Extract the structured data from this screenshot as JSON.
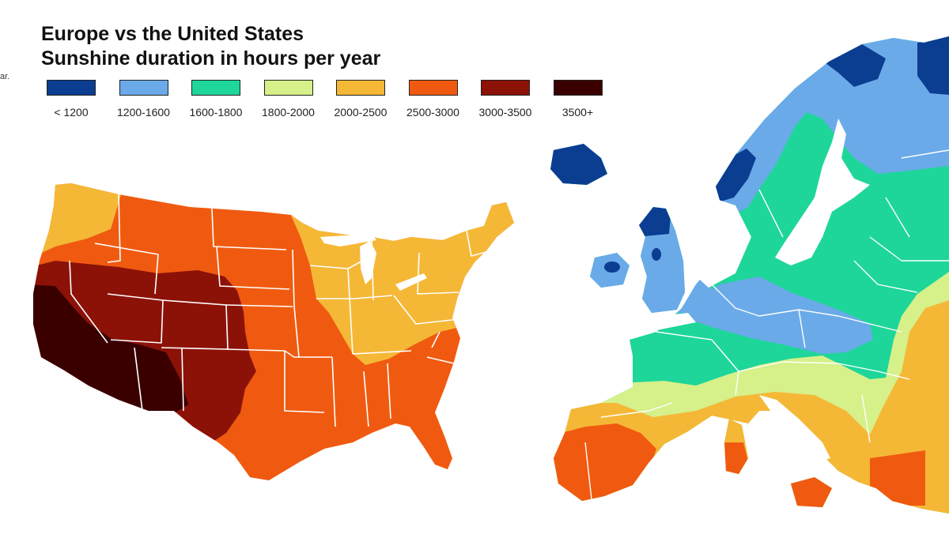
{
  "title_lines": [
    "Europe vs the United States",
    "Sunshine duration in hours per year"
  ],
  "edge_fragment": "ar.",
  "legend": [
    {
      "label": "< 1200",
      "color": "#0b3d91"
    },
    {
      "label": "1200-1600",
      "color": "#6aaae8"
    },
    {
      "label": "1600-1800",
      "color": "#1ed69a"
    },
    {
      "label": "1800-2000",
      "color": "#d6f08a"
    },
    {
      "label": "2000-2500",
      "color": "#f5b836"
    },
    {
      "label": "2500-3000",
      "color": "#f05a10"
    },
    {
      "label": "3000-3500",
      "color": "#8c1208"
    },
    {
      "label": "3500+",
      "color": "#3a0000"
    }
  ],
  "maps": {
    "usa": {
      "region": "United States",
      "classes_present": [
        "2000-2500",
        "2500-3000",
        "3000-3500",
        "3500+"
      ]
    },
    "europe": {
      "region": "Europe",
      "classes_present": [
        "< 1200",
        "1200-1600",
        "1600-1800",
        "1800-2000",
        "2000-2500",
        "2500-3000"
      ]
    }
  }
}
